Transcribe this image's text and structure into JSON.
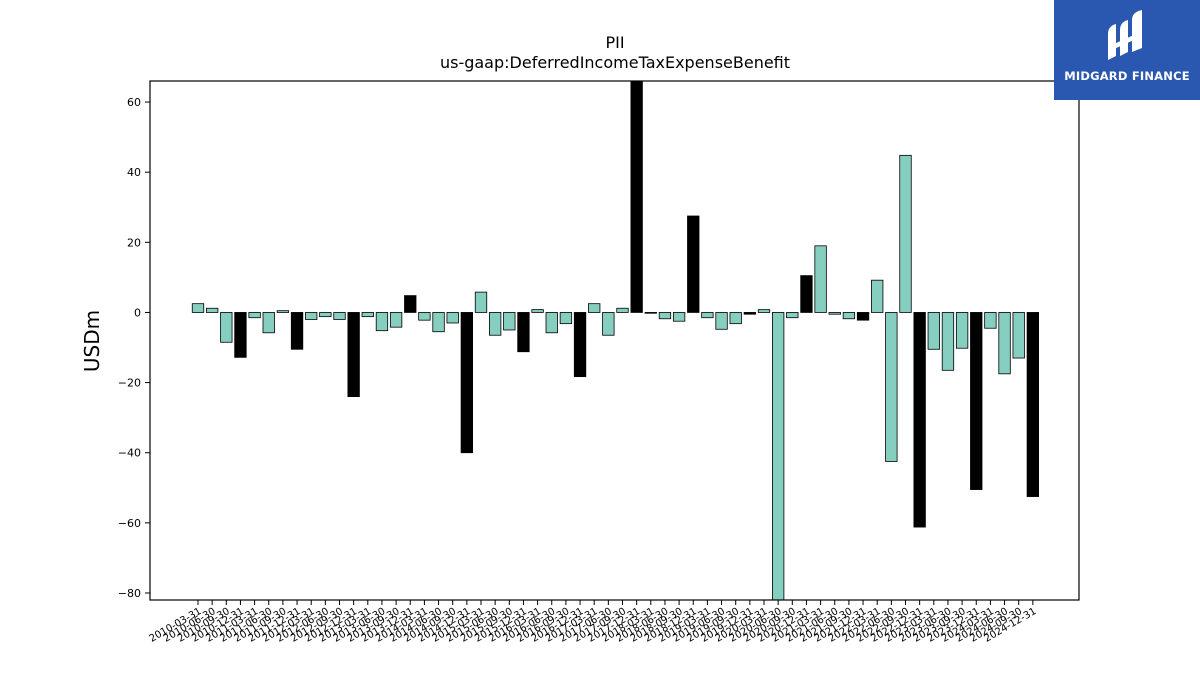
{
  "chart_data": {
    "type": "bar",
    "title": "PII",
    "subtitle": "us-gaap:DeferredIncomeTaxExpenseBenefit",
    "ylabel": "USDm",
    "xlabel": "",
    "ylim": [
      -82,
      66
    ],
    "yticks": [
      60,
      40,
      20,
      0,
      -20,
      -40,
      -60,
      -80
    ],
    "ytick_labels": [
      "60",
      "40",
      "20",
      "0",
      "−20",
      "−40",
      "−60",
      "−80"
    ],
    "grid": false,
    "categories": [
      "2010-03-31",
      "2010-06-30",
      "2010-09-30",
      "2010-12-31",
      "2011-03-31",
      "2011-06-30",
      "2011-09-30",
      "2011-12-31",
      "2012-03-31",
      "2012-06-30",
      "2012-09-30",
      "2012-12-31",
      "2013-03-31",
      "2013-06-30",
      "2013-09-30",
      "2013-12-31",
      "2014-03-31",
      "2014-06-30",
      "2014-09-30",
      "2014-12-31",
      "2015-03-31",
      "2015-06-30",
      "2015-09-30",
      "2015-12-31",
      "2016-03-31",
      "2016-06-30",
      "2016-09-30",
      "2016-12-31",
      "2017-03-31",
      "2017-06-30",
      "2017-09-30",
      "2017-12-31",
      "2018-03-31",
      "2018-06-30",
      "2018-09-30",
      "2018-12-31",
      "2019-03-31",
      "2019-06-30",
      "2019-09-30",
      "2019-12-31",
      "2020-03-31",
      "2020-06-30",
      "2020-09-30",
      "2020-12-31",
      "2021-03-31",
      "2021-06-30",
      "2021-09-30",
      "2021-12-31",
      "2022-03-31",
      "2022-06-30",
      "2022-09-30",
      "2022-12-31",
      "2023-03-31",
      "2023-06-30",
      "2023-09-30",
      "2023-12-31",
      "2024-03-31",
      "2024-06-30",
      "2024-09-30",
      "2024-12-31"
    ],
    "values": [
      2.5,
      1.2,
      -8.5,
      -12.8,
      -1.5,
      -5.8,
      0.5,
      -10.5,
      -2.0,
      -1.2,
      -2.0,
      -24.0,
      -1.2,
      -5.2,
      -4.2,
      4.8,
      -2.2,
      -5.5,
      -3.0,
      -40.0,
      5.8,
      -6.5,
      -5.0,
      -11.2,
      0.8,
      -5.8,
      -3.2,
      -18.3,
      2.5,
      -6.5,
      1.2,
      66.0,
      0.0,
      -1.8,
      -2.5,
      27.5,
      -1.5,
      -4.8,
      -3.2,
      -0.5,
      0.8,
      -82.0,
      -1.5,
      10.5,
      19.0,
      -0.5,
      -1.8,
      -2.2,
      9.2,
      -42.5,
      44.8,
      -61.2,
      -10.5,
      -16.5,
      -10.2,
      -50.5,
      -4.5,
      -17.5,
      -13.0,
      -52.5
    ],
    "bar_colors": [
      "#86cfc0",
      "#86cfc0",
      "#86cfc0",
      "#000000",
      "#86cfc0",
      "#86cfc0",
      "#86cfc0",
      "#000000",
      "#86cfc0",
      "#86cfc0",
      "#86cfc0",
      "#000000",
      "#86cfc0",
      "#86cfc0",
      "#86cfc0",
      "#000000",
      "#86cfc0",
      "#86cfc0",
      "#86cfc0",
      "#000000",
      "#86cfc0",
      "#86cfc0",
      "#86cfc0",
      "#000000",
      "#86cfc0",
      "#86cfc0",
      "#86cfc0",
      "#000000",
      "#86cfc0",
      "#86cfc0",
      "#86cfc0",
      "#000000",
      "#86cfc0",
      "#86cfc0",
      "#86cfc0",
      "#000000",
      "#86cfc0",
      "#86cfc0",
      "#86cfc0",
      "#000000",
      "#86cfc0",
      "#86cfc0",
      "#86cfc0",
      "#000000",
      "#86cfc0",
      "#86cfc0",
      "#86cfc0",
      "#000000",
      "#86cfc0",
      "#86cfc0",
      "#86cfc0",
      "#000000",
      "#86cfc0",
      "#86cfc0",
      "#86cfc0",
      "#000000",
      "#86cfc0",
      "#86cfc0",
      "#86cfc0",
      "#000000"
    ],
    "quarterly_color": "#86cfc0",
    "annual_color": "#000000"
  },
  "logo": {
    "text": "MIDGARD FINANCE",
    "background": "#2a58b0",
    "icon": "midgard-logo-icon"
  }
}
